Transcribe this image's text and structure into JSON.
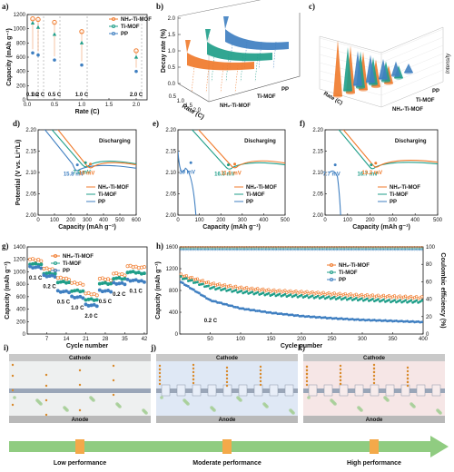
{
  "panel_letters": [
    "a)",
    "b)",
    "c)",
    "d)",
    "e)",
    "f)",
    "g)",
    "h)",
    "i)",
    "j)",
    "k)"
  ],
  "colors": {
    "nh2": "#f07a2b",
    "timof": "#1f9e89",
    "pp": "#3f7fc1",
    "cathode": "#c9c9c9",
    "anode": "#b9b9b9",
    "arrow": "#7cc36b"
  },
  "chart_data": [
    {
      "panel": "a",
      "type": "scatter",
      "xlabel": "Rate (C)",
      "ylabel": "Capacity (mAh g⁻¹)",
      "xlim": [
        0,
        2.2
      ],
      "ylim": [
        0,
        1200
      ],
      "xticks": [
        "0.0",
        "0.5",
        "1.0",
        "1.5",
        "2.0"
      ],
      "yticks": [
        "0",
        "200",
        "400",
        "600",
        "800",
        "1000",
        "1200"
      ],
      "rate_labels": [
        "0.1 C",
        "0.2 C",
        "0.5 C",
        "1.0 C",
        "2.0 C"
      ],
      "rates": [
        0.1,
        0.2,
        0.5,
        1.0,
        2.0
      ],
      "series": [
        {
          "name": "NH₂-Ti-MOF",
          "values": [
            1140,
            1130,
            1090,
            960,
            690
          ]
        },
        {
          "name": "Ti-MOF",
          "values": [
            1080,
            1020,
            920,
            800,
            600
          ]
        },
        {
          "name": "PP",
          "values": [
            660,
            630,
            560,
            490,
            400
          ]
        }
      ]
    },
    {
      "panel": "b",
      "type": "area",
      "ylabel": "Decay rate (%)",
      "xlabel": "Rate (C)",
      "yticks": [
        "0.0",
        "0.5",
        "1.0",
        "1.5",
        "2.0"
      ],
      "xticks": [
        "0.5",
        "1.0",
        "1.5",
        "2.0"
      ],
      "series": [
        "PP",
        "Ti-MOF",
        "NH₂-Ti-MOF"
      ]
    },
    {
      "panel": "c",
      "type": "bar",
      "zlabel": "Intensity",
      "xlabel": "Rate (C)",
      "series": [
        "PP",
        "Ti-MOF",
        "NH₂-Ti-MOF"
      ]
    },
    {
      "panel": "d",
      "type": "line",
      "annotation": "Discharging",
      "xlabel": "Capacity (mAh g⁻¹)",
      "ylabel": "Potential (V vs. Li⁺/Li)",
      "xlim": [
        0,
        600
      ],
      "ylim": [
        2.0,
        2.2
      ],
      "xticks": [
        "0",
        "100",
        "200",
        "300",
        "400",
        "500",
        "600"
      ],
      "yticks": [
        "2.00",
        "2.05",
        "2.10",
        "2.15",
        "2.20"
      ],
      "overpotentials": [
        {
          "label": "15.8 mV",
          "series": "PP",
          "x": 240,
          "y": 2.105
        },
        {
          "label": "7.0 mV",
          "series": "Ti-MOF",
          "x": 290,
          "y": 2.11
        },
        {
          "label": "10 mV",
          "series": "NH₂-Ti-MOF",
          "x": 320,
          "y": 2.107
        }
      ],
      "legend": [
        "NH₂-Ti-MOF",
        "Ti-MOF",
        "PP"
      ]
    },
    {
      "panel": "e",
      "type": "line",
      "annotation": "Discharging",
      "xlabel": "Capacity (mAh g⁻¹)",
      "xlim": [
        0,
        500
      ],
      "ylim": [
        2.0,
        2.2
      ],
      "xticks": [
        "0",
        "100",
        "200",
        "300",
        "400",
        "500"
      ],
      "yticks": [
        "2.00",
        "2.05",
        "2.10",
        "2.15",
        "2.20"
      ],
      "overpotentials": [
        {
          "label": "10 mV",
          "series": "PP",
          "x": 60,
          "y": 2.11
        },
        {
          "label": "16.6 mV",
          "series": "Ti-MOF",
          "x": 235,
          "y": 2.105
        },
        {
          "label": "11.5 mV",
          "series": "NH₂-Ti-MOF",
          "x": 265,
          "y": 2.107
        }
      ],
      "legend": [
        "NH₂-Ti-MOF",
        "Ti-MOF",
        "PP"
      ]
    },
    {
      "panel": "f",
      "type": "line",
      "annotation": "Discharging",
      "xlabel": "Capacity (mAh g⁻¹)",
      "xlim": [
        0,
        500
      ],
      "ylim": [
        2.0,
        2.2
      ],
      "xticks": [
        "0",
        "100",
        "200",
        "300",
        "400",
        "500"
      ],
      "yticks": [
        "2.00",
        "2.05",
        "2.10",
        "2.15",
        "2.20"
      ],
      "overpotentials": [
        {
          "label": "7.7 mV",
          "series": "PP",
          "x": 45,
          "y": 2.105
        },
        {
          "label": "16.7 mV",
          "series": "Ti-MOF",
          "x": 205,
          "y": 2.105
        },
        {
          "label": "13.2 mV",
          "series": "NH₂-Ti-MOF",
          "x": 225,
          "y": 2.109
        }
      ],
      "legend": [
        "NH₂-Ti-MOF",
        "Ti-MOF",
        "PP"
      ]
    },
    {
      "panel": "g",
      "type": "scatter",
      "xlabel": "Cycle number",
      "ylabel": "Capacity (mAh g⁻¹)",
      "xlim": [
        0,
        43
      ],
      "ylim": [
        0,
        1400
      ],
      "xticks": [
        "7",
        "14",
        "21",
        "28",
        "35",
        "42"
      ],
      "yticks": [
        "0",
        "200",
        "400",
        "600",
        "800",
        "1000",
        "1200",
        "1400"
      ],
      "rate_labels": [
        "0.1 C",
        "0.2 C",
        "0.5 C",
        "1.0 C",
        "2.0 C",
        "0.5 C",
        "0.2 C",
        "0.1 C"
      ],
      "segments": [
        {
          "start": 1,
          "end": 5,
          "nh2": 1200,
          "timof": 1130,
          "pp": 1080
        },
        {
          "start": 6,
          "end": 10,
          "nh2": 1050,
          "timof": 980,
          "pp": 940
        },
        {
          "start": 11,
          "end": 15,
          "nh2": 900,
          "timof": 840,
          "pp": 690
        },
        {
          "start": 16,
          "end": 20,
          "nh2": 820,
          "timof": 700,
          "pp": 600
        },
        {
          "start": 21,
          "end": 25,
          "nh2": 650,
          "timof": 560,
          "pp": 470
        },
        {
          "start": 26,
          "end": 30,
          "nh2": 890,
          "timof": 820,
          "pp": 700
        },
        {
          "start": 31,
          "end": 35,
          "nh2": 970,
          "timof": 900,
          "pp": 820
        },
        {
          "start": 36,
          "end": 42,
          "nh2": 1090,
          "timof": 1000,
          "pp": 870
        }
      ],
      "legend": [
        "NH₂-Ti-MOF",
        "Ti-MOF",
        "PP"
      ]
    },
    {
      "panel": "h",
      "type": "scatter",
      "annotation": "0.2 C",
      "xlabel": "Cycle number",
      "ylabel": "Capacity (mAh g⁻¹)",
      "y2label": "Coulombic efficiency (%)",
      "xlim": [
        0,
        400
      ],
      "ylim": [
        0,
        1600
      ],
      "y2lim": [
        0,
        100
      ],
      "xticks": [
        "50",
        "100",
        "150",
        "200",
        "250",
        "300",
        "350",
        "400"
      ],
      "yticks": [
        "0",
        "400",
        "800",
        "1200",
        "1600"
      ],
      "y2ticks": [
        "0",
        "20",
        "40",
        "60",
        "80",
        "100"
      ],
      "series": [
        {
          "name": "NH₂-Ti-MOF",
          "x": [
            1,
            50,
            100,
            150,
            200,
            250,
            300,
            350,
            400
          ],
          "values": [
            1080,
            920,
            840,
            790,
            760,
            730,
            700,
            680,
            660
          ]
        },
        {
          "name": "Ti-MOF",
          "x": [
            1,
            50,
            100,
            150,
            200,
            250,
            300,
            350,
            400
          ],
          "values": [
            1050,
            860,
            780,
            730,
            700,
            670,
            640,
            610,
            600
          ]
        },
        {
          "name": "PP",
          "x": [
            1,
            50,
            100,
            150,
            200,
            250,
            300,
            350,
            400
          ],
          "values": [
            960,
            620,
            470,
            390,
            330,
            290,
            260,
            240,
            220
          ]
        }
      ],
      "legend": [
        "NH₂-Ti-MOF",
        "Ti-MOF",
        "PP"
      ]
    }
  ],
  "schematic": {
    "cathode_label": "Cathode",
    "anode_label": "Anode",
    "panels": [
      {
        "letter": "i)",
        "caption": "Low performance"
      },
      {
        "letter": "j)",
        "caption": "Moderate performance"
      },
      {
        "letter": "k)",
        "caption": "High performance"
      }
    ]
  }
}
